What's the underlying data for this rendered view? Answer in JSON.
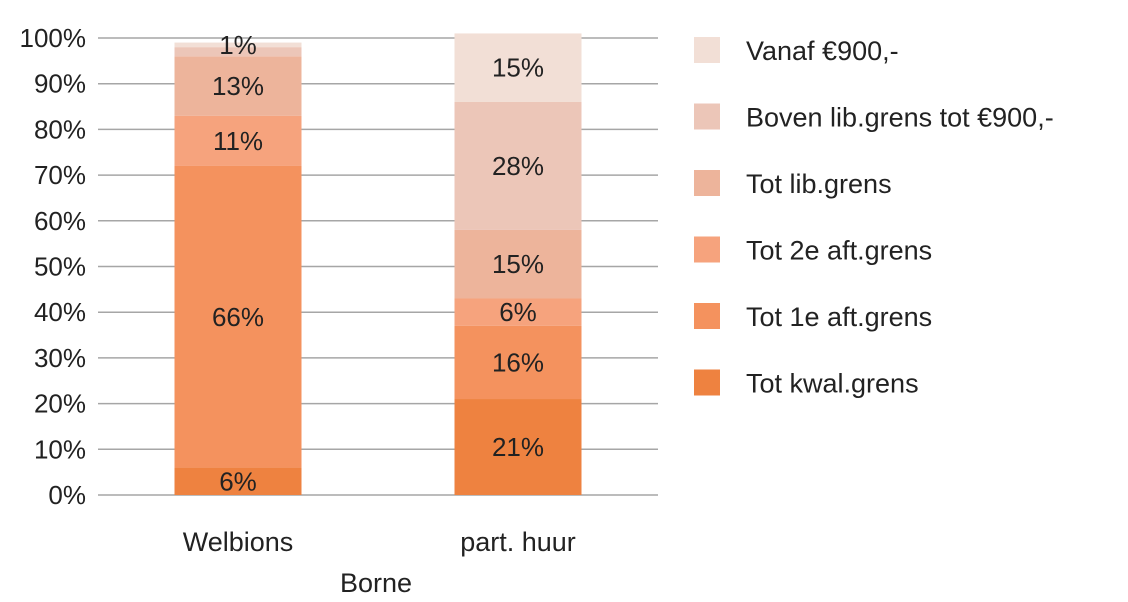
{
  "chart_data": {
    "type": "bar",
    "stacked": true,
    "percent": true,
    "categories": [
      "Welbions",
      "part. huur"
    ],
    "xlabel": "Borne",
    "ylabel": "",
    "ylim": [
      0,
      100
    ],
    "ytick_labels": [
      "0%",
      "10%",
      "20%",
      "30%",
      "40%",
      "50%",
      "60%",
      "70%",
      "80%",
      "90%",
      "100%"
    ],
    "grid": true,
    "legend_position": "right",
    "series": [
      {
        "name": "Tot kwal.grens",
        "color": "#ee8240",
        "values": [
          6,
          21
        ],
        "labels": [
          "6%",
          "21%"
        ]
      },
      {
        "name": "Tot 1e aft.grens",
        "color": "#f4925e",
        "values": [
          66,
          16
        ],
        "labels": [
          "66%",
          "16%"
        ]
      },
      {
        "name": "Tot 2e aft.grens",
        "color": "#f6a37d",
        "values": [
          11,
          6
        ],
        "labels": [
          "11%",
          "6%"
        ]
      },
      {
        "name": "Tot lib.grens",
        "color": "#edb49b",
        "values": [
          13,
          15
        ],
        "labels": [
          "13%",
          "15%"
        ]
      },
      {
        "name": "Boven lib.grens tot €900,-",
        "color": "#ecc6b8",
        "values": [
          2,
          28
        ],
        "labels": [
          "",
          "28%"
        ]
      },
      {
        "name": "Vanaf €900,-",
        "color": "#f2dfd6",
        "values": [
          1,
          15
        ],
        "labels": [
          "1%",
          "15%"
        ]
      }
    ]
  }
}
